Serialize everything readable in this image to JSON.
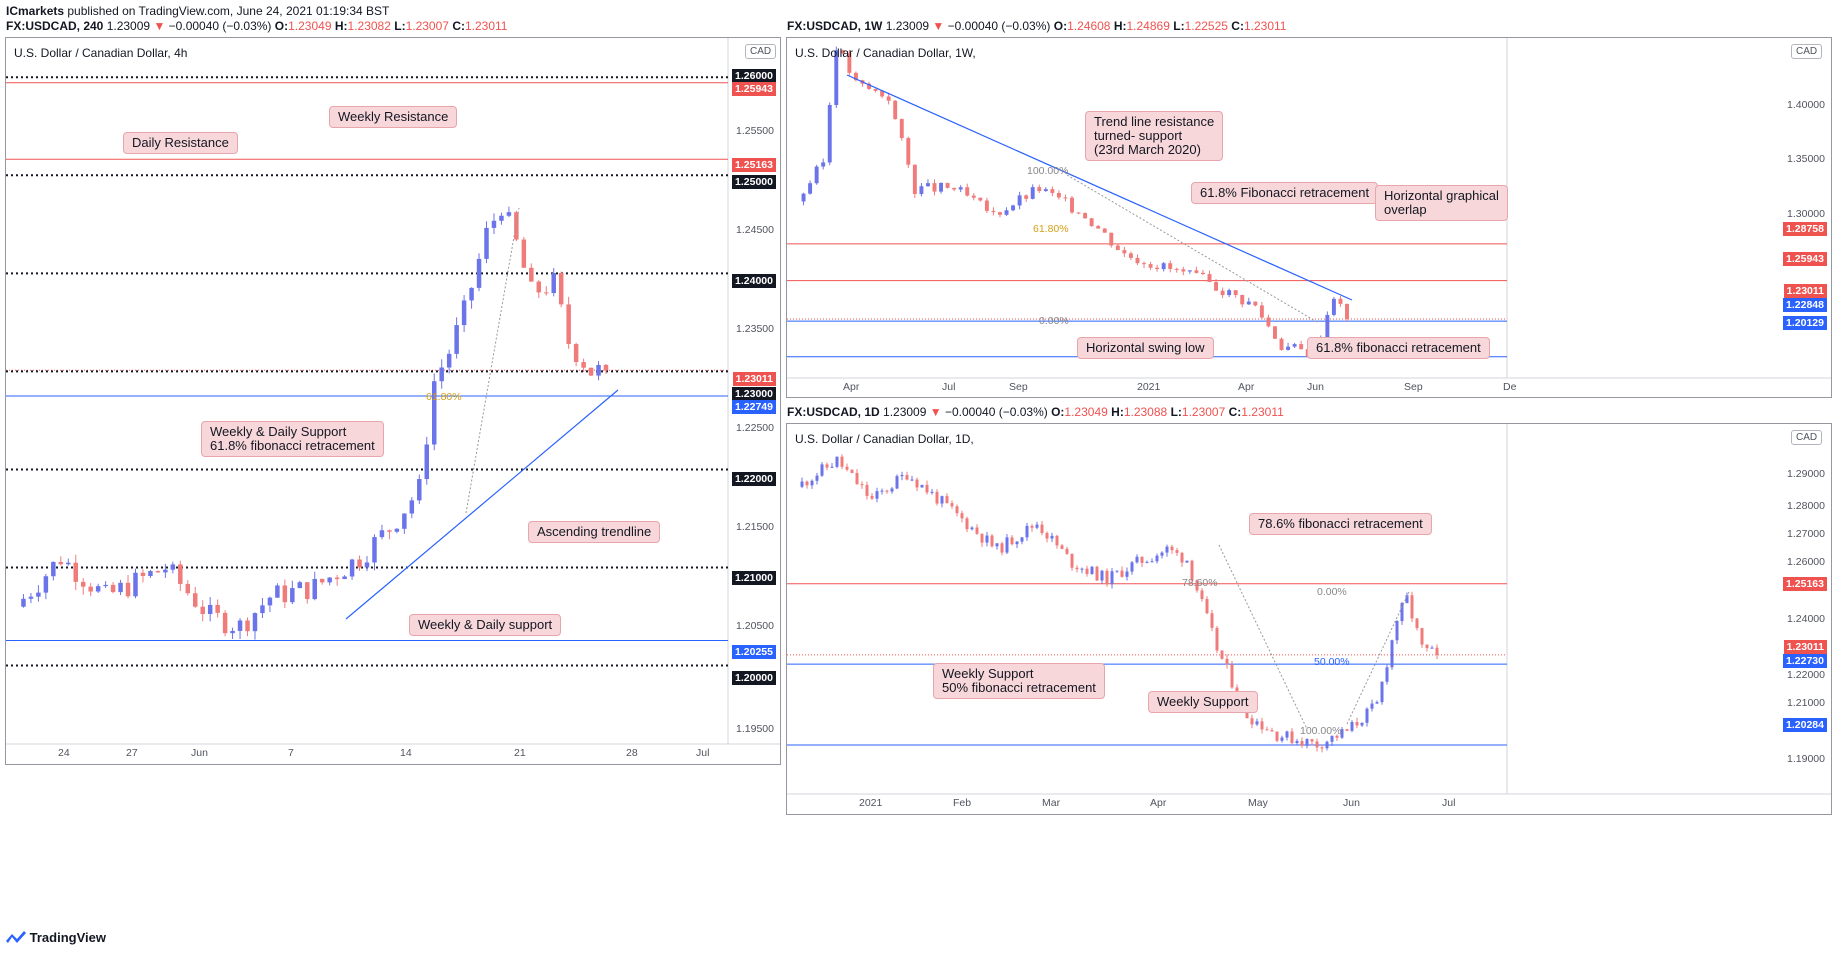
{
  "header": {
    "publisher": "ICmarkets",
    "published_on": "published on TradingView.com, June 24, 2021 01:19:34 BST"
  },
  "footer": {
    "brand": "TradingView"
  },
  "panels": {
    "left": {
      "info": {
        "symbol": "FX:USDCAD, 240",
        "last": "1.23009",
        "arrow": "▼",
        "change": "−0.00040 (−0.03%)",
        "o_lbl": "O:",
        "o": "1.23049",
        "h_lbl": "H:",
        "h": "1.23082",
        "l_lbl": "L:",
        "l": "1.23007",
        "c_lbl": "C:",
        "c": "1.23011"
      },
      "title": "U.S. Dollar / Canadian Dollar, 4h",
      "currency": "CAD",
      "axis_ticks": [
        "1.25500",
        "1.24500",
        "1.23500",
        "1.22500",
        "1.21500",
        "1.20500",
        "1.19500"
      ],
      "x_labels": [
        "24",
        "27",
        "Jun",
        "7",
        "14",
        "21",
        "28",
        "Jul"
      ],
      "price_tags": [
        {
          "v": "1.26000",
          "c": "dark"
        },
        {
          "v": "1.25943",
          "c": "red"
        },
        {
          "v": "1.25163",
          "c": "red"
        },
        {
          "v": "1.25000",
          "c": "dark"
        },
        {
          "v": "1.24000",
          "c": "dark"
        },
        {
          "v": "1.23011",
          "c": "red"
        },
        {
          "v": "1.23000",
          "c": "dark"
        },
        {
          "v": "1.22749",
          "c": "blue"
        },
        {
          "v": "1.22000",
          "c": "dark"
        },
        {
          "v": "1.21000",
          "c": "dark"
        },
        {
          "v": "1.20255",
          "c": "blue"
        },
        {
          "v": "1.20000",
          "c": "dark"
        }
      ],
      "fib_label": "61.80%",
      "notes": {
        "weekly_resistance": "Weekly Resistance",
        "daily_resistance": "Daily Resistance",
        "support_1": "Weekly & Daily Support",
        "support_2": "61.8% fibonacci retracement",
        "trend": "Ascending trendline",
        "weekly_daily_support": "Weekly & Daily support"
      }
    },
    "weekly": {
      "info": {
        "symbol": "FX:USDCAD, 1W",
        "last": "1.23009",
        "arrow": "▼",
        "change": "−0.00040 (−0.03%)",
        "o_lbl": "O:",
        "o": "1.24608",
        "h_lbl": "H:",
        "h": "1.24869",
        "l_lbl": "L:",
        "l": "1.22525",
        "c_lbl": "C:",
        "c": "1.23011"
      },
      "title": "U.S. Dollar / Canadian Dollar, 1W,",
      "currency": "CAD",
      "axis_ticks": [
        "1.40000",
        "1.35000",
        "1.30000"
      ],
      "x_labels": [
        "Apr",
        "Jul",
        "Sep",
        "2021",
        "Apr",
        "Jun",
        "Sep",
        "De"
      ],
      "price_tags": [
        {
          "v": "1.28758",
          "c": "red"
        },
        {
          "v": "1.25943",
          "c": "red"
        },
        {
          "v": "1.23011",
          "c": "red"
        },
        {
          "v": "1.22848",
          "c": "blue"
        },
        {
          "v": "1.20129",
          "c": "blue"
        }
      ],
      "fib_labels": {
        "top": "100.00%",
        "mid": "61.80%",
        "bottom": "0.00%"
      },
      "notes": {
        "trend_1": "Trend line resistance",
        "trend_2": "turned- support",
        "trend_3": "(23rd March 2020)",
        "fib_top": "61.8% Fibonacci retracement",
        "overlap_1": "Horizontal graphical",
        "overlap_2": "overlap",
        "swing": "Horizontal swing low",
        "fib_bottom": "61.8% fibonacci retracement"
      }
    },
    "daily": {
      "info": {
        "symbol": "FX:USDCAD, 1D",
        "last": "1.23009",
        "arrow": "▼",
        "change": "−0.00040 (−0.03%)",
        "o_lbl": "O:",
        "o": "1.23049",
        "h_lbl": "H:",
        "h": "1.23088",
        "l_lbl": "L:",
        "l": "1.23007",
        "c_lbl": "C:",
        "c": "1.23011"
      },
      "title": "U.S. Dollar / Canadian Dollar, 1D,",
      "currency": "CAD",
      "axis_ticks": [
        "1.29000",
        "1.28000",
        "1.27000",
        "1.26000",
        "1.24000",
        "1.22000",
        "1.21000",
        "1.19000"
      ],
      "x_labels": [
        "2021",
        "Feb",
        "Mar",
        "Apr",
        "May",
        "Jun",
        "Jul"
      ],
      "price_tags": [
        {
          "v": "1.25163",
          "c": "red"
        },
        {
          "v": "1.23011",
          "c": "red"
        },
        {
          "v": "1.22730",
          "c": "blue"
        },
        {
          "v": "1.20284",
          "c": "blue"
        }
      ],
      "fib_labels": {
        "a": "78.60%",
        "b": "0.00%",
        "c": "50.00%",
        "d": "100.00%"
      },
      "notes": {
        "fib786": "78.6% fibonacci retracement",
        "ws_1": "Weekly Support",
        "ws_2": "50% fibonacci retracement",
        "weekly_support": "Weekly Support"
      }
    }
  },
  "chart_data": [
    {
      "type": "candlestick",
      "title": "U.S. Dollar / Canadian Dollar, 4h",
      "ylim": [
        1.192,
        1.264
      ],
      "horizontal_levels": [
        1.26,
        1.25943,
        1.25163,
        1.25,
        1.24,
        1.23011,
        1.23,
        1.22749,
        1.22,
        1.21,
        1.20255,
        1.2
      ],
      "path": [
        [
          0,
          1.206
        ],
        [
          6,
          1.211
        ],
        [
          12,
          1.207
        ],
        [
          20,
          1.21
        ],
        [
          26,
          1.205
        ],
        [
          30,
          1.204
        ],
        [
          34,
          1.207
        ],
        [
          40,
          1.208
        ],
        [
          46,
          1.211
        ],
        [
          50,
          1.214
        ],
        [
          54,
          1.218
        ],
        [
          56,
          1.229
        ],
        [
          58,
          1.232
        ],
        [
          60,
          1.236
        ],
        [
          63,
          1.244
        ],
        [
          65,
          1.247
        ],
        [
          67,
          1.243
        ],
        [
          69,
          1.238
        ],
        [
          72,
          1.239
        ],
        [
          74,
          1.233
        ],
        [
          77,
          1.23
        ],
        [
          79,
          1.2301
        ]
      ]
    },
    {
      "type": "candlestick",
      "title": "U.S. Dollar / Canadian Dollar, 1W",
      "ylim": [
        1.185,
        1.445
      ],
      "horizontal_levels": [
        1.28758,
        1.25943,
        1.23011,
        1.22848,
        1.20129
      ],
      "path": [
        [
          0,
          1.32
        ],
        [
          4,
          1.35
        ],
        [
          6,
          1.44
        ],
        [
          9,
          1.41
        ],
        [
          14,
          1.4
        ],
        [
          18,
          1.33
        ],
        [
          24,
          1.33
        ],
        [
          30,
          1.31
        ],
        [
          37,
          1.33
        ],
        [
          44,
          1.31
        ],
        [
          50,
          1.28
        ],
        [
          56,
          1.27
        ],
        [
          62,
          1.26
        ],
        [
          66,
          1.25
        ],
        [
          70,
          1.24
        ],
        [
          74,
          1.21
        ],
        [
          78,
          1.205
        ],
        [
          80,
          1.22
        ],
        [
          82,
          1.249
        ],
        [
          84,
          1.2301
        ]
      ]
    },
    {
      "type": "candlestick",
      "title": "U.S. Dollar / Canadian Dollar, 1D",
      "ylim": [
        1.188,
        1.3
      ],
      "horizontal_levels": [
        1.25163,
        1.23011,
        1.2273,
        1.20284
      ],
      "path": [
        [
          0,
          1.281
        ],
        [
          8,
          1.289
        ],
        [
          15,
          1.277
        ],
        [
          22,
          1.285
        ],
        [
          30,
          1.275
        ],
        [
          40,
          1.262
        ],
        [
          48,
          1.27
        ],
        [
          55,
          1.258
        ],
        [
          62,
          1.253
        ],
        [
          68,
          1.258
        ],
        [
          74,
          1.262
        ],
        [
          78,
          1.259
        ],
        [
          84,
          1.232
        ],
        [
          90,
          1.212
        ],
        [
          96,
          1.206
        ],
        [
          104,
          1.203
        ],
        [
          110,
          1.207
        ],
        [
          116,
          1.215
        ],
        [
          120,
          1.241
        ],
        [
          122,
          1.247
        ],
        [
          125,
          1.232
        ],
        [
          128,
          1.2301
        ]
      ]
    }
  ]
}
